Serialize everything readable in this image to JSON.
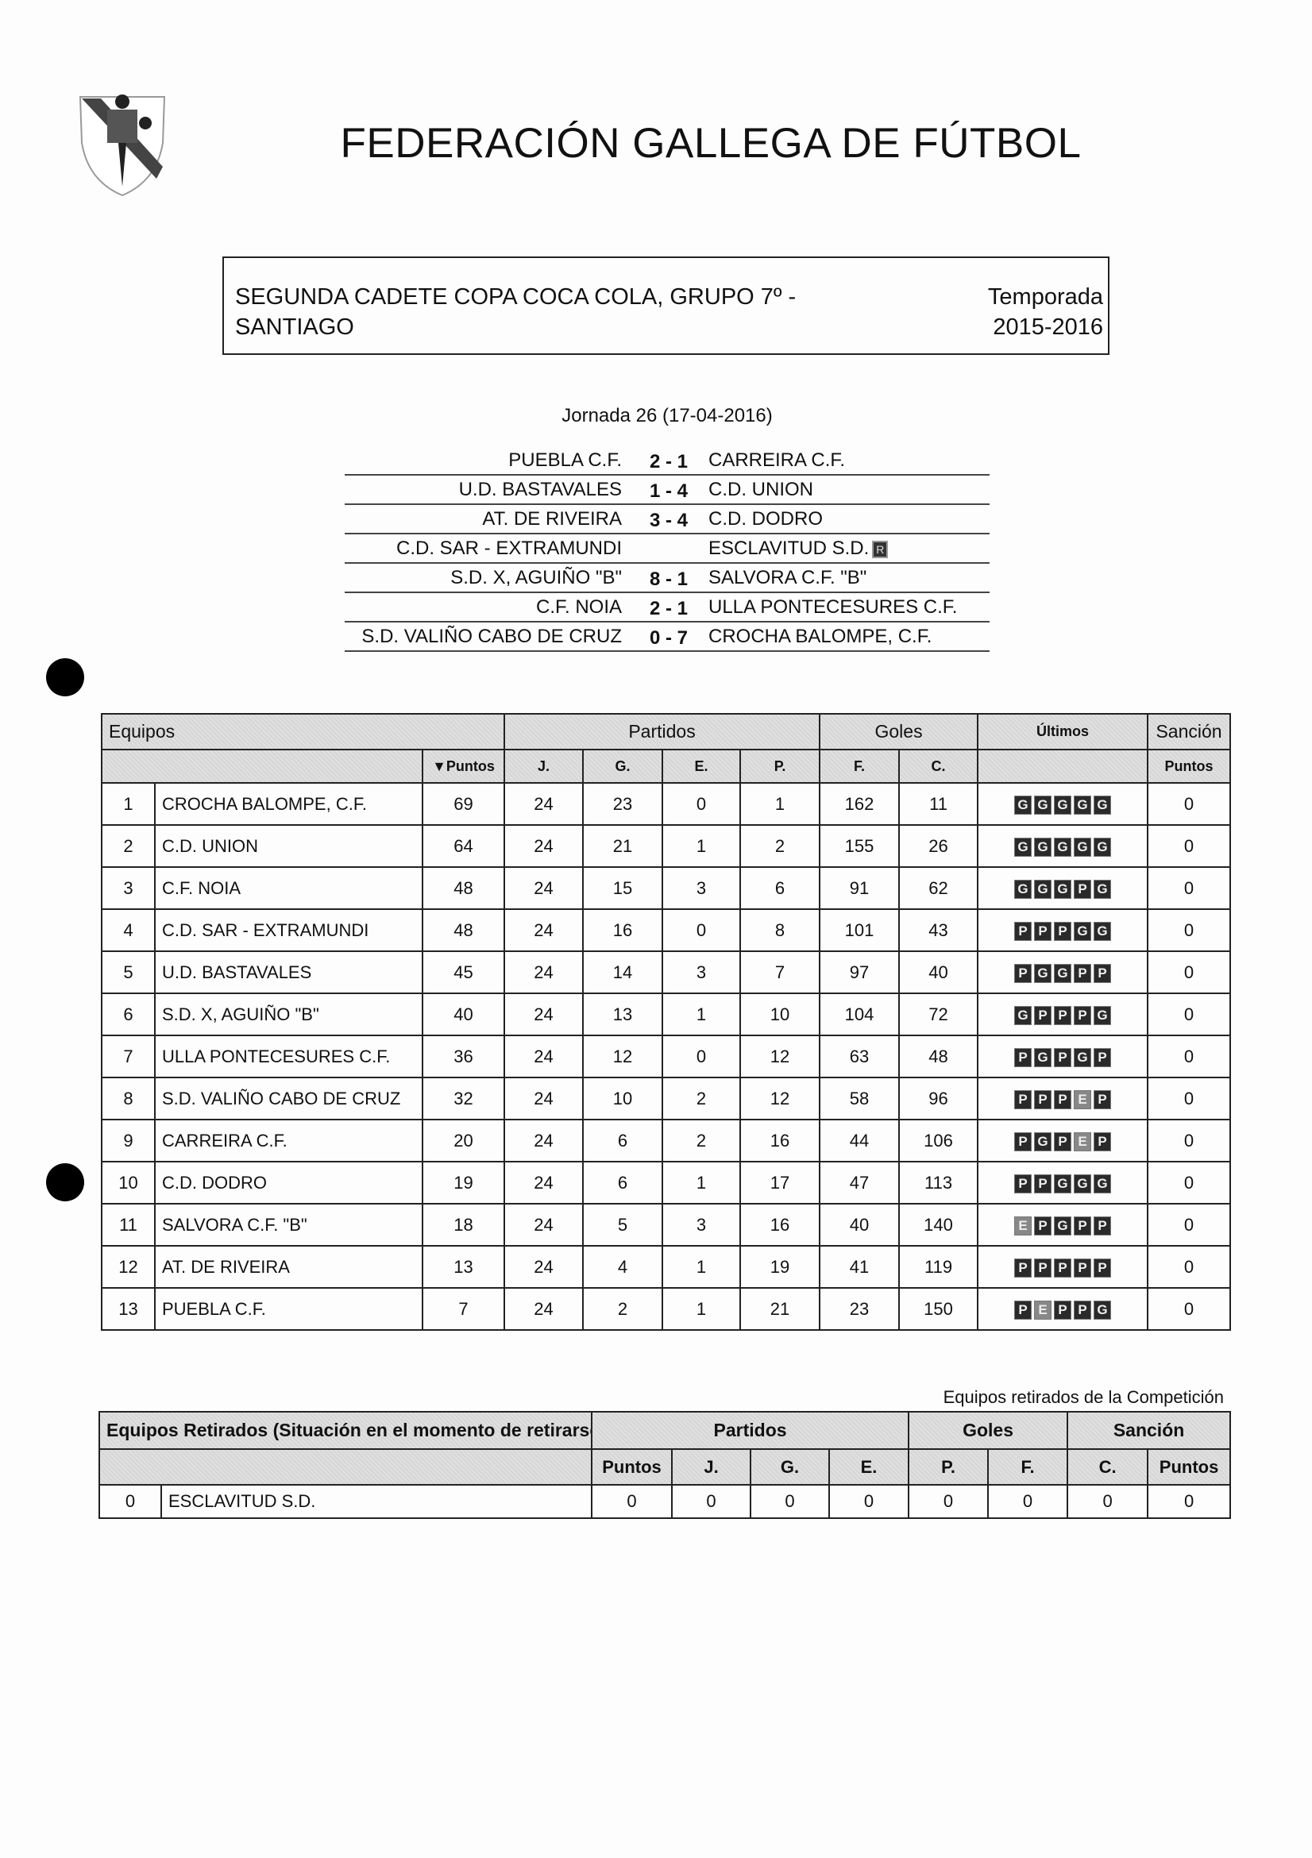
{
  "header": {
    "logo_text": "FGF",
    "title": "FEDERACIÓN GALLEGA DE FÚTBOL"
  },
  "competition": {
    "name": "SEGUNDA CADETE COPA COCA COLA, GRUPO 7º - SANTIAGO",
    "season_label": "Temporada",
    "season": "2015-2016"
  },
  "round": {
    "title": "Jornada 26 (17-04-2016)",
    "matches": [
      {
        "home": "PUEBLA C.F.",
        "score": "2 - 1",
        "away": "CARREIRA C.F."
      },
      {
        "home": "U.D. BASTAVALES",
        "score": "1 - 4",
        "away": "C.D. UNION"
      },
      {
        "home": "AT. DE RIVEIRA",
        "score": "3 - 4",
        "away": "C.D. DODRO"
      },
      {
        "home": "C.D. SAR - EXTRAMUNDI",
        "score": "",
        "away": "ESCLAVITUD S.D.",
        "badge": "R"
      },
      {
        "home": "S.D. X, AGUIÑO \"B\"",
        "score": "8 - 1",
        "away": "SALVORA C.F. \"B\""
      },
      {
        "home": "C.F. NOIA",
        "score": "2 - 1",
        "away": "ULLA PONTECESURES C.F."
      },
      {
        "home": "S.D. VALIÑO CABO DE CRUZ",
        "score": "0 - 7",
        "away": "CROCHA BALOMPE, C.F."
      }
    ]
  },
  "standings": {
    "group_headers": {
      "teams": "Equipos",
      "matches": "Partidos",
      "goals": "Goles",
      "last": "Últimos",
      "sanction": "Sanción"
    },
    "col_headers": {
      "points": "▼Puntos",
      "played": "J.",
      "won": "G.",
      "drawn": "E.",
      "lost": "P.",
      "for": "F.",
      "against": "C.",
      "sanction_points": "Puntos"
    },
    "rows": [
      {
        "pos": "1",
        "team": "CROCHA BALOMPE, C.F.",
        "pts": "69",
        "j": "24",
        "g": "23",
        "e": "0",
        "p": "1",
        "f": "162",
        "c": "11",
        "last": [
          "G",
          "G",
          "G",
          "G",
          "G"
        ],
        "sanction": "0"
      },
      {
        "pos": "2",
        "team": "C.D. UNION",
        "pts": "64",
        "j": "24",
        "g": "21",
        "e": "1",
        "p": "2",
        "f": "155",
        "c": "26",
        "last": [
          "G",
          "G",
          "G",
          "G",
          "G"
        ],
        "sanction": "0"
      },
      {
        "pos": "3",
        "team": "C.F. NOIA",
        "pts": "48",
        "j": "24",
        "g": "15",
        "e": "3",
        "p": "6",
        "f": "91",
        "c": "62",
        "last": [
          "G",
          "G",
          "G",
          "P",
          "G"
        ],
        "sanction": "0"
      },
      {
        "pos": "4",
        "team": "C.D. SAR - EXTRAMUNDI",
        "pts": "48",
        "j": "24",
        "g": "16",
        "e": "0",
        "p": "8",
        "f": "101",
        "c": "43",
        "last": [
          "P",
          "P",
          "P",
          "G",
          "G"
        ],
        "sanction": "0"
      },
      {
        "pos": "5",
        "team": "U.D. BASTAVALES",
        "pts": "45",
        "j": "24",
        "g": "14",
        "e": "3",
        "p": "7",
        "f": "97",
        "c": "40",
        "last": [
          "P",
          "G",
          "G",
          "P",
          "P"
        ],
        "sanction": "0"
      },
      {
        "pos": "6",
        "team": "S.D. X, AGUIÑO \"B\"",
        "pts": "40",
        "j": "24",
        "g": "13",
        "e": "1",
        "p": "10",
        "f": "104",
        "c": "72",
        "last": [
          "G",
          "P",
          "P",
          "P",
          "G"
        ],
        "sanction": "0"
      },
      {
        "pos": "7",
        "team": "ULLA PONTECESURES C.F.",
        "pts": "36",
        "j": "24",
        "g": "12",
        "e": "0",
        "p": "12",
        "f": "63",
        "c": "48",
        "last": [
          "P",
          "G",
          "P",
          "G",
          "P"
        ],
        "sanction": "0"
      },
      {
        "pos": "8",
        "team": "S.D. VALIÑO CABO DE CRUZ",
        "pts": "32",
        "j": "24",
        "g": "10",
        "e": "2",
        "p": "12",
        "f": "58",
        "c": "96",
        "last": [
          "P",
          "P",
          "P",
          "E",
          "P"
        ],
        "sanction": "0"
      },
      {
        "pos": "9",
        "team": "CARREIRA C.F.",
        "pts": "20",
        "j": "24",
        "g": "6",
        "e": "2",
        "p": "16",
        "f": "44",
        "c": "106",
        "last": [
          "P",
          "G",
          "P",
          "E",
          "P"
        ],
        "sanction": "0"
      },
      {
        "pos": "10",
        "team": "C.D. DODRO",
        "pts": "19",
        "j": "24",
        "g": "6",
        "e": "1",
        "p": "17",
        "f": "47",
        "c": "113",
        "last": [
          "P",
          "P",
          "G",
          "G",
          "G"
        ],
        "sanction": "0"
      },
      {
        "pos": "11",
        "team": "SALVORA C.F. \"B\"",
        "pts": "18",
        "j": "24",
        "g": "5",
        "e": "3",
        "p": "16",
        "f": "40",
        "c": "140",
        "last": [
          "E",
          "P",
          "G",
          "P",
          "P"
        ],
        "sanction": "0"
      },
      {
        "pos": "12",
        "team": "AT. DE RIVEIRA",
        "pts": "13",
        "j": "24",
        "g": "4",
        "e": "1",
        "p": "19",
        "f": "41",
        "c": "119",
        "last": [
          "P",
          "P",
          "P",
          "P",
          "P"
        ],
        "sanction": "0"
      },
      {
        "pos": "13",
        "team": "PUEBLA C.F.",
        "pts": "7",
        "j": "24",
        "g": "2",
        "e": "1",
        "p": "21",
        "f": "23",
        "c": "150",
        "last": [
          "P",
          "E",
          "P",
          "P",
          "G"
        ],
        "sanction": "0"
      }
    ]
  },
  "retired": {
    "caption": "Equipos retirados de la Competición",
    "group_headers": {
      "teams": "Equipos Retirados (Situación en el momento de retirarse)",
      "matches": "Partidos",
      "goals": "Goles",
      "sanction": "Sanción"
    },
    "col_headers": {
      "points": "Puntos",
      "played": "J.",
      "won": "G.",
      "drawn": "E.",
      "lost": "P.",
      "for": "F.",
      "against": "C.",
      "sanction_points": "Puntos"
    },
    "rows": [
      {
        "pos": "0",
        "team": "ESCLAVITUD S.D.",
        "pts": "0",
        "j": "0",
        "g": "0",
        "e": "0",
        "p": "0",
        "f": "0",
        "c": "0",
        "sanction": "0"
      }
    ]
  }
}
